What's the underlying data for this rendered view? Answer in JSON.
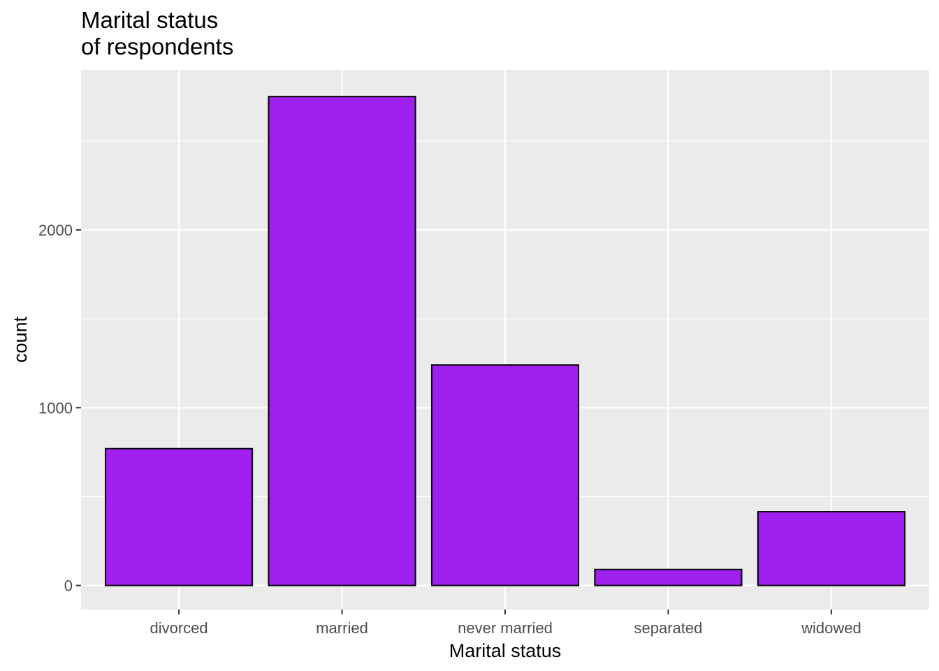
{
  "chart_data": {
    "type": "bar",
    "title": "Marital status\nof respondents",
    "xlabel": "Marital status",
    "ylabel": "count",
    "categories": [
      "divorced",
      "married",
      "never married",
      "separated",
      "widowed"
    ],
    "values": [
      770,
      2750,
      1240,
      90,
      415
    ],
    "y_ticks": [
      0,
      1000,
      2000
    ],
    "y_tick_labels": [
      "0",
      "1000",
      "2000"
    ],
    "ylim": [
      -135,
      2900
    ],
    "grid": true,
    "colors": {
      "bar_fill": "#A020F0",
      "bar_stroke": "#000000",
      "panel_background": "#EBEBEB",
      "grid": "#FFFFFF"
    }
  }
}
